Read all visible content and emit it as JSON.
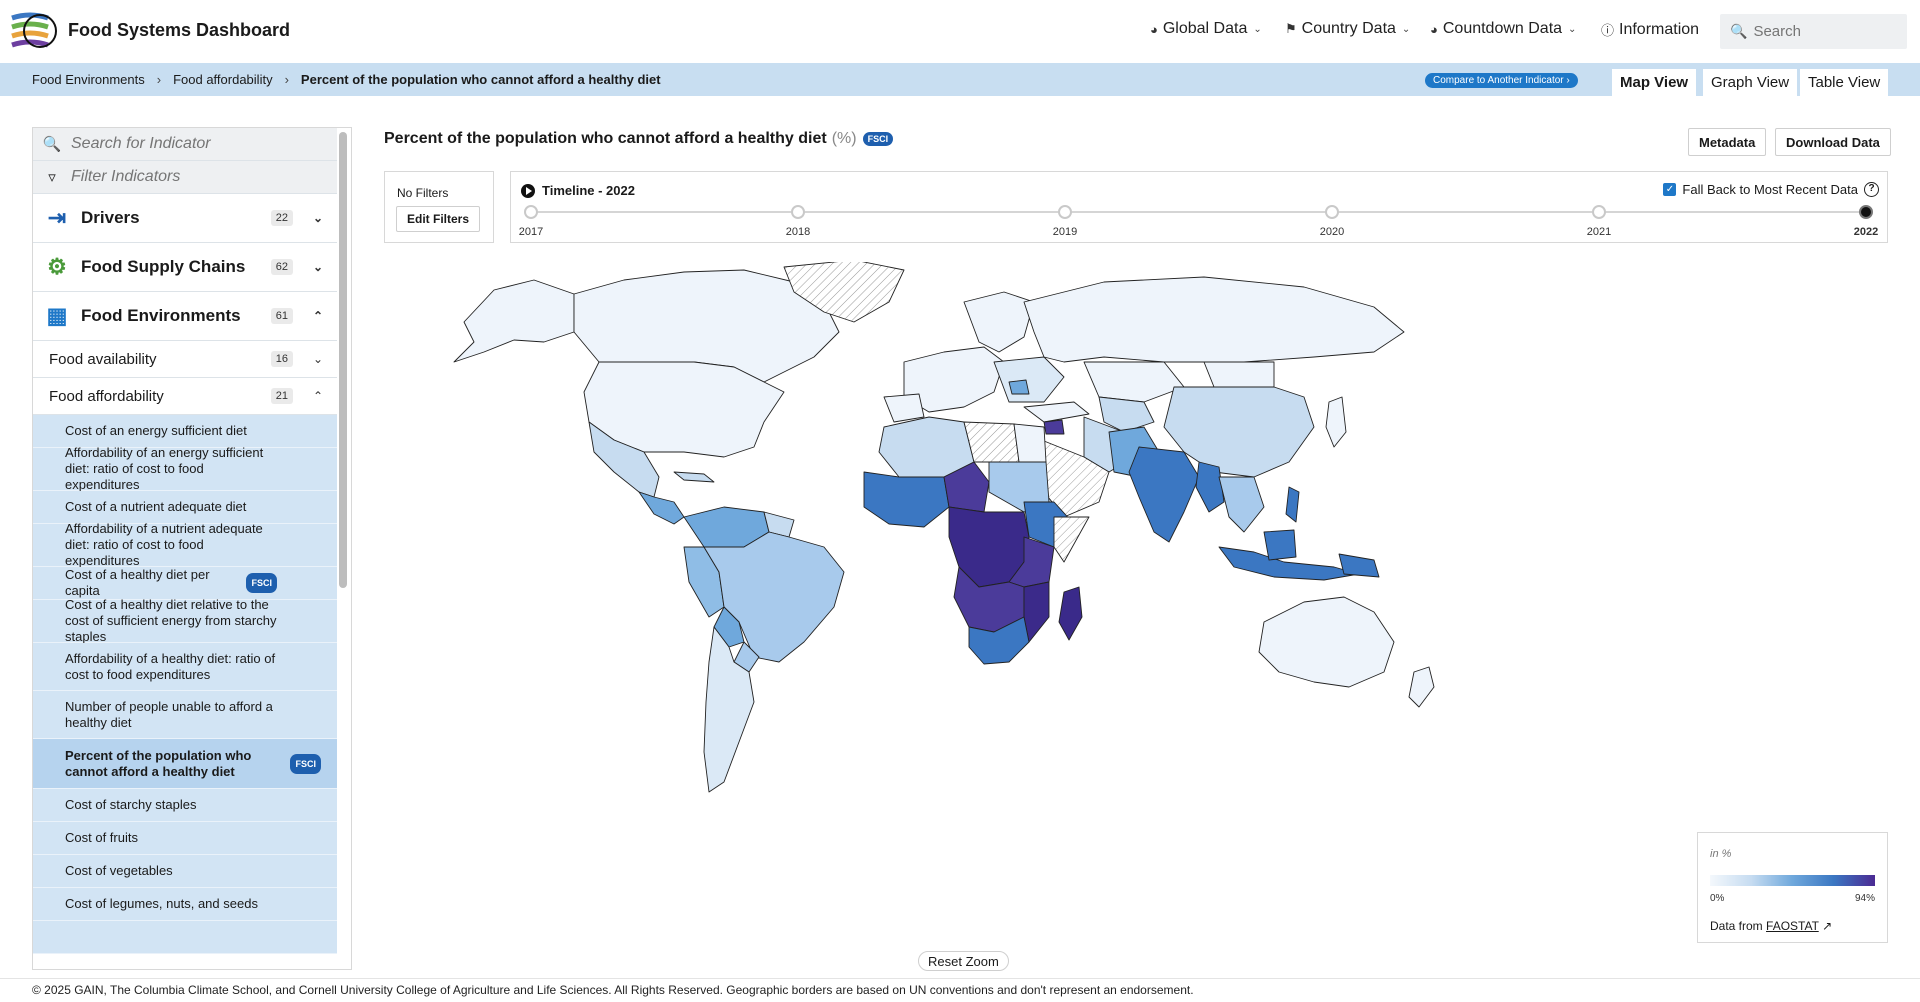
{
  "app": {
    "title": "Food Systems Dashboard"
  },
  "nav": [
    {
      "label": "Global Data",
      "icon": "globe-icon"
    },
    {
      "label": "Country Data",
      "icon": "flag-icon"
    },
    {
      "label": "Countdown Data",
      "icon": "globe-icon"
    },
    {
      "label": "Information",
      "icon": "info-icon"
    }
  ],
  "search": {
    "placeholder": "Search"
  },
  "breadcrumb": [
    "Food Environments",
    "Food affordability",
    "Percent of the population who cannot afford a healthy diet"
  ],
  "compare_label": "Compare to Another Indicator",
  "views": [
    "Map View",
    "Graph View",
    "Table View"
  ],
  "sidebar": {
    "search_placeholder": "Search for Indicator",
    "filter_placeholder": "Filter Indicators",
    "categories": [
      {
        "label": "Drivers",
        "count": "22",
        "icon": "arrow-in-icon"
      },
      {
        "label": "Food Supply Chains",
        "count": "62",
        "icon": "tractor-icon"
      },
      {
        "label": "Food Environments",
        "count": "61",
        "icon": "store-icon"
      }
    ],
    "subs": [
      {
        "label": "Food availability",
        "count": "16"
      },
      {
        "label": "Food affordability",
        "count": "21"
      }
    ],
    "leaves": [
      {
        "label": "Cost of an energy sufficient diet"
      },
      {
        "label": "Affordability of an energy sufficient diet: ratio of cost to food expenditures"
      },
      {
        "label": "Cost of a nutrient adequate diet"
      },
      {
        "label": "Affordability of a nutrient adequate diet: ratio of cost to food expenditures"
      },
      {
        "label": "Cost of a healthy diet per capita",
        "tag": "FSCI"
      },
      {
        "label": "Cost of a healthy diet relative to the cost of sufficient energy from starchy staples"
      },
      {
        "label": "Affordability of a healthy diet: ratio of cost to food expenditures"
      },
      {
        "label": "Number of people unable to afford a healthy diet"
      },
      {
        "label": "Percent of the population who cannot afford a healthy diet",
        "tag": "FSCI"
      },
      {
        "label": "Cost of starchy staples"
      },
      {
        "label": "Cost of fruits"
      },
      {
        "label": "Cost of vegetables"
      },
      {
        "label": "Cost of legumes, nuts, and seeds"
      }
    ]
  },
  "main": {
    "title": "Percent of the population who cannot afford a healthy diet",
    "unit": "(%)",
    "tag": "FSCI",
    "metadata_label": "Metadata",
    "download_label": "Download Data",
    "no_filters": "No Filters",
    "edit_filters": "Edit Filters",
    "timeline_title": "Timeline - 2022",
    "fallback_label": "Fall Back to Most Recent Data",
    "years": [
      "2017",
      "2018",
      "2019",
      "2020",
      "2021",
      "2022"
    ],
    "selected_year": "2022",
    "reset_zoom": "Reset Zoom"
  },
  "legend": {
    "unit": "in %",
    "min": "0%",
    "max": "94%",
    "source_prefix": "Data from",
    "source_link": "FAOSTAT"
  },
  "footer": "© 2025 GAIN, The Columbia Climate School, and Cornell University College of Agriculture and Life Sciences. All Rights Reserved. Geographic borders are based on UN conventions and don't represent an endorsement.",
  "colors": {
    "accent": "#1e78c8",
    "crumb_bg": "#c8def1",
    "leaf_bg": "#d2e4f4",
    "scale_low": "#f4f8fc",
    "scale_high": "#4b2a93"
  }
}
